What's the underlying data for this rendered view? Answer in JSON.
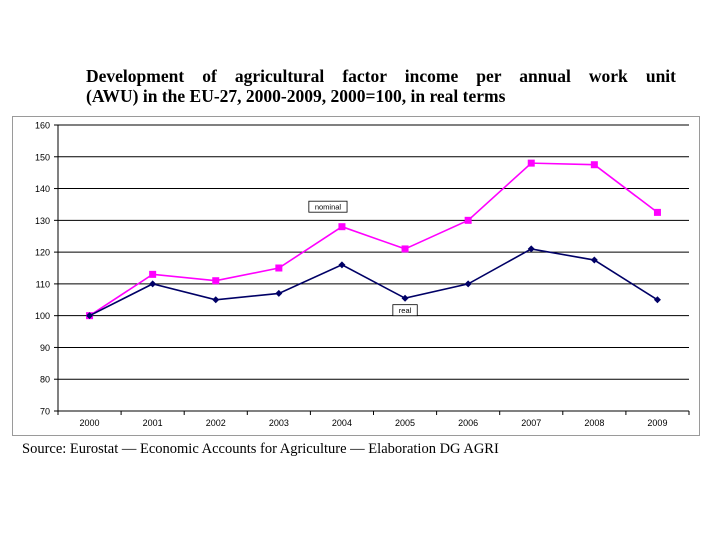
{
  "title_line1": "Development of agricultural factor income per annual work unit",
  "title_line2": "(AWU) in the EU-27, 2000-2009, 2000=100, in real terms",
  "source": "Source: Eurostat — Economic Accounts for Agriculture — Elaboration DG AGRI",
  "chart_data": {
    "type": "line",
    "title": "Development of agricultural factor income per annual work unit (AWU) in the EU-27, 2000-2009, 2000=100, in real terms",
    "xlabel": "",
    "ylabel": "",
    "categories": [
      "2000",
      "2001",
      "2002",
      "2003",
      "2004",
      "2005",
      "2006",
      "2007",
      "2008",
      "2009"
    ],
    "ylim": [
      70,
      160
    ],
    "yticks": [
      70,
      80,
      90,
      100,
      110,
      120,
      130,
      140,
      150,
      160
    ],
    "grid": true,
    "series": [
      {
        "name": "nominal",
        "color": "#ff00ff",
        "marker": "square",
        "values": [
          100,
          113,
          111,
          115,
          128,
          121,
          130,
          148,
          147.5,
          132.5
        ]
      },
      {
        "name": "real",
        "color": "#000066",
        "marker": "diamond",
        "values": [
          100,
          110,
          105,
          107,
          116,
          105.5,
          110,
          121,
          117.5,
          105
        ]
      }
    ]
  }
}
